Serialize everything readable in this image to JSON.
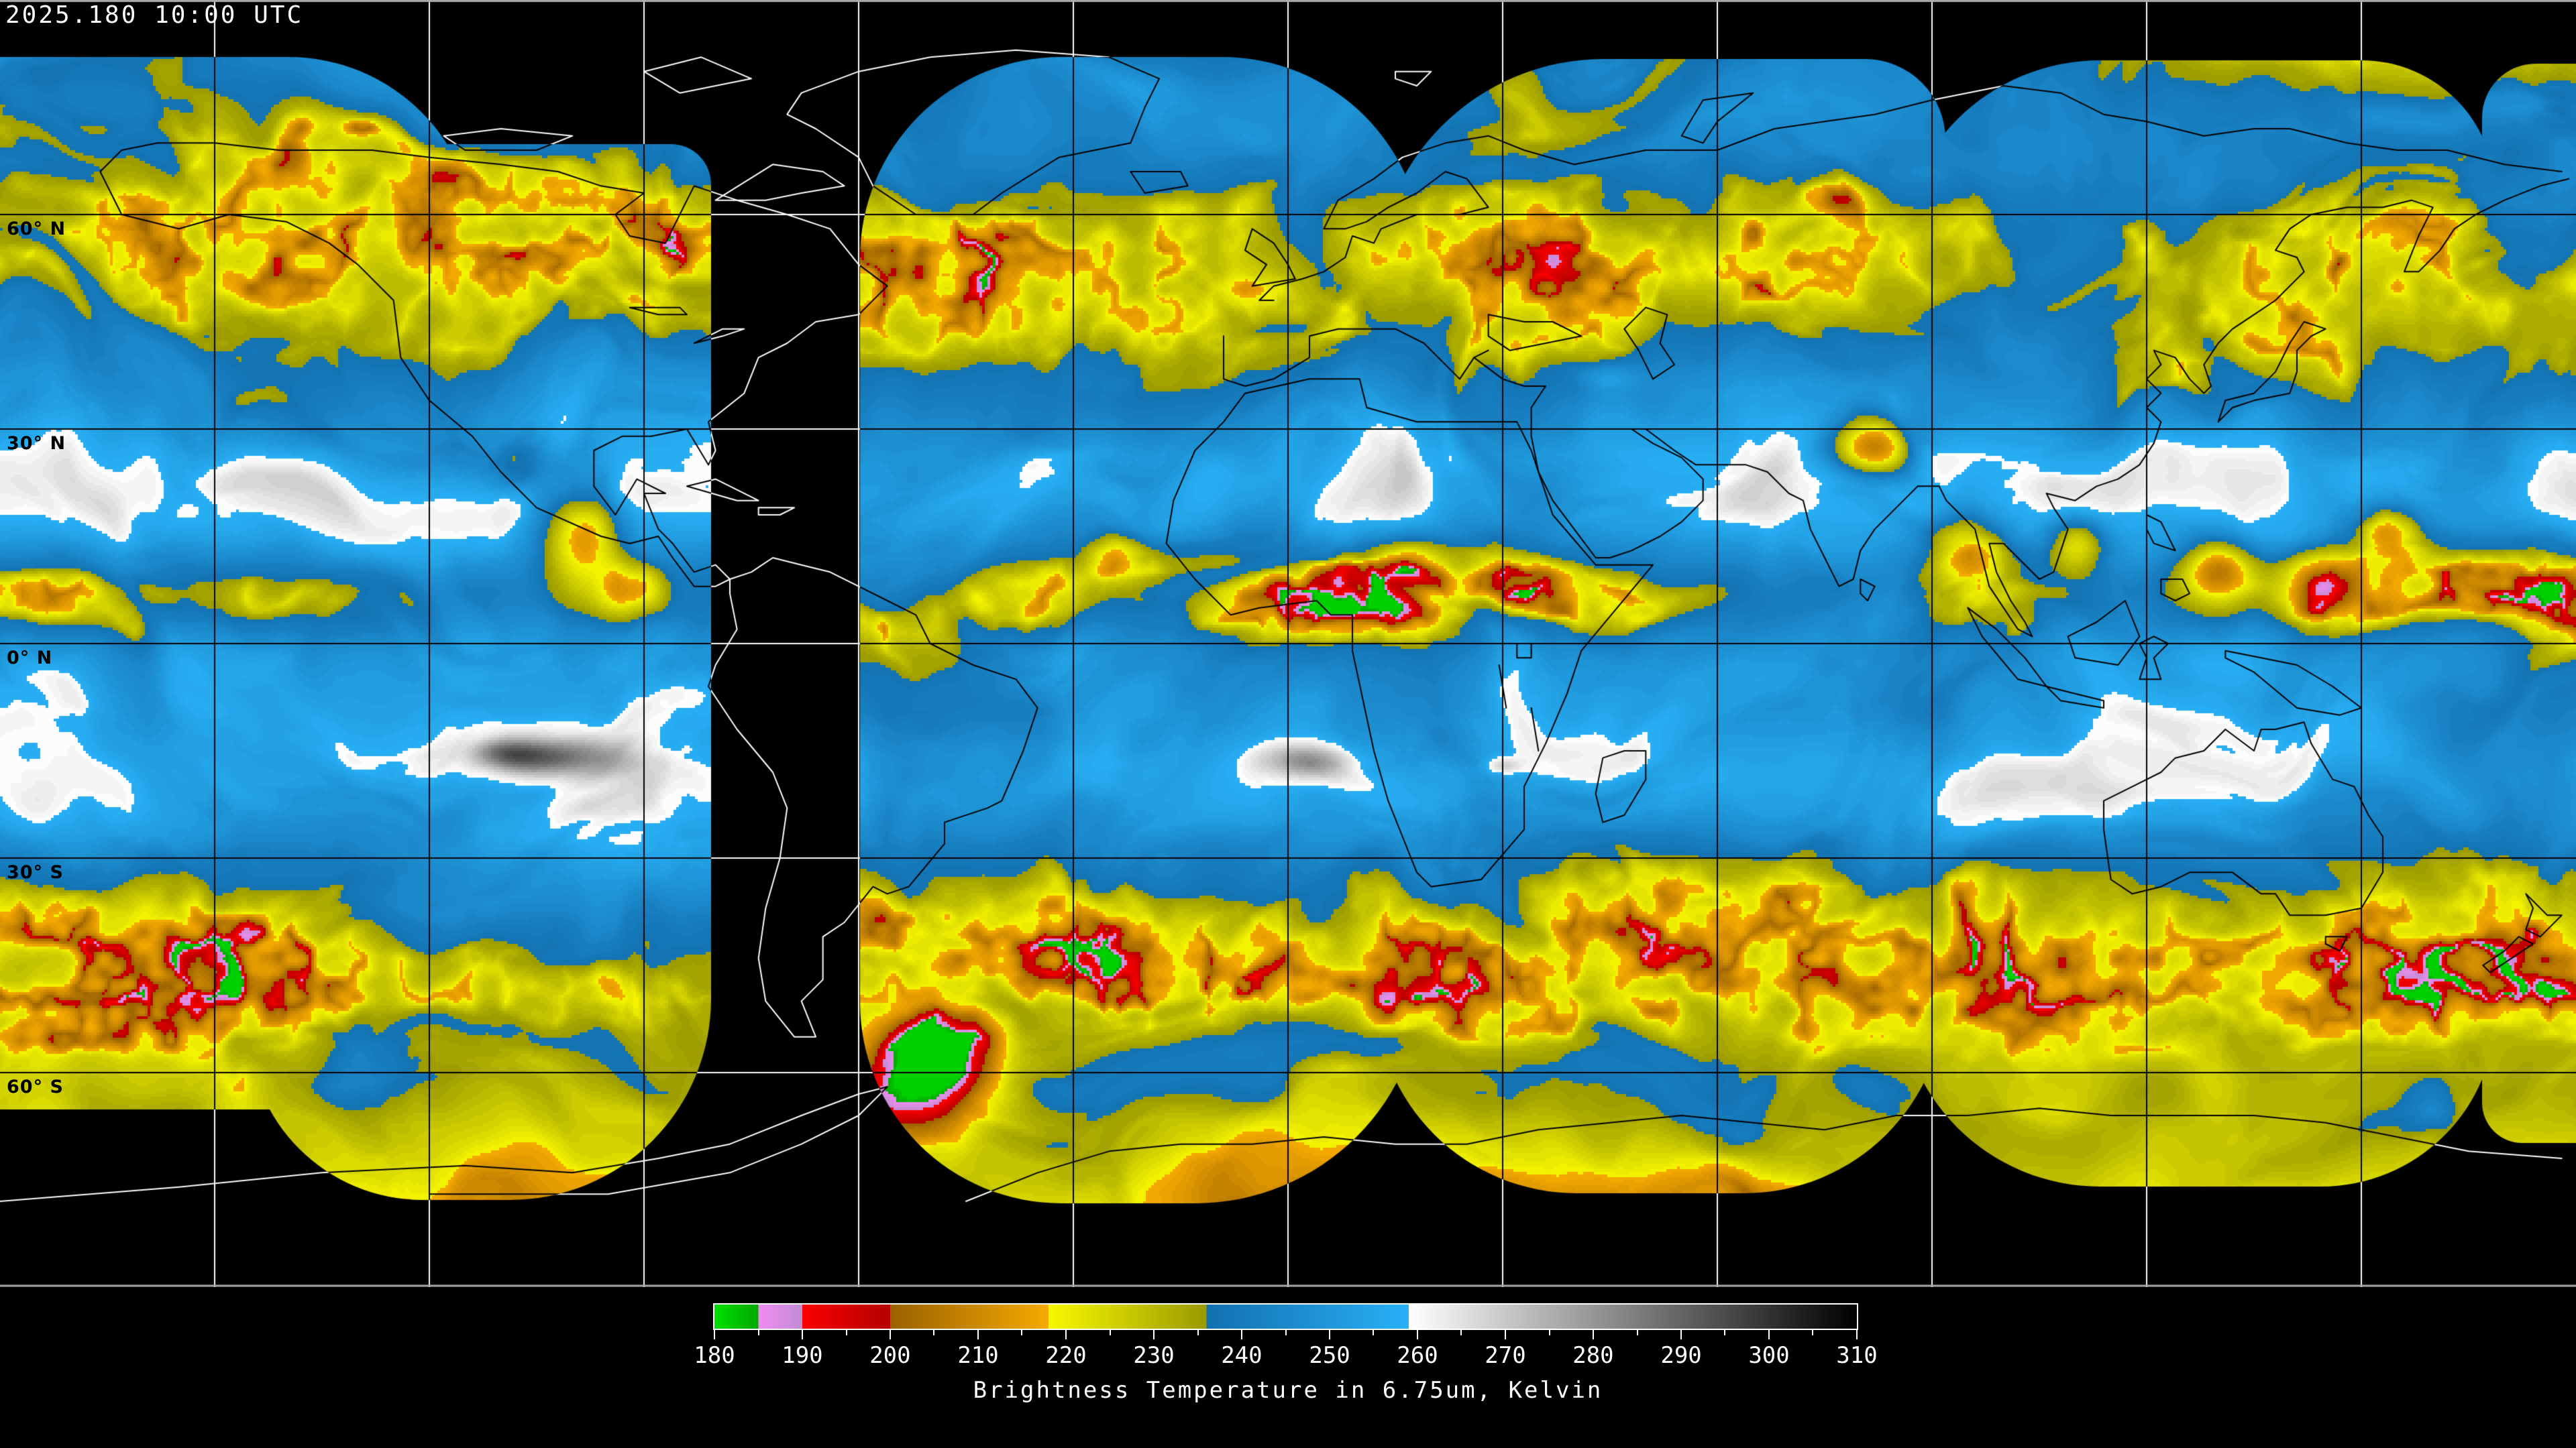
{
  "header": {
    "timestamp": "2025.180 10:00 UTC"
  },
  "map": {
    "projection": "equirectangular-global-composite",
    "grid_step_deg": 30,
    "latitude_labels": [
      {
        "text": "60° N",
        "lat": 60
      },
      {
        "text": "30° N",
        "lat": 30
      },
      {
        "text": "0° N",
        "lat": 0
      },
      {
        "text": "30° S",
        "lat": -30
      },
      {
        "text": "60° S",
        "lat": -60
      }
    ],
    "colors": {
      "void": "#000000",
      "graticule_on_data": "#000000",
      "graticule_on_void": "#ffffff",
      "coast_on_data": "#000000",
      "coast_on_void": "#ffffff",
      "frame": "#a8a8a8"
    }
  },
  "colorbar": {
    "title": "Brightness Temperature in 6.75um, Kelvin",
    "range_k": [
      180,
      310
    ],
    "major_ticks": [
      180,
      190,
      200,
      210,
      220,
      230,
      240,
      250,
      260,
      270,
      280,
      290,
      300,
      310
    ],
    "minor_tick_step_k": 5,
    "segments": [
      {
        "from_k": 180,
        "to_k": 185,
        "from": "#00e000",
        "to": "#00a800"
      },
      {
        "from_k": 185,
        "to_k": 190,
        "from": "#f08cf0",
        "to": "#c08cd4"
      },
      {
        "from_k": 190,
        "to_k": 200,
        "from": "#fa0000",
        "to": "#b40000"
      },
      {
        "from_k": 200,
        "to_k": 218,
        "from": "#9a6200",
        "to": "#f5aa00"
      },
      {
        "from_k": 218,
        "to_k": 236,
        "from": "#f8f800",
        "to": "#9a9a00"
      },
      {
        "from_k": 236,
        "to_k": 259,
        "from": "#1270b0",
        "to": "#28b0f5"
      },
      {
        "from_k": 259,
        "to_k": 310,
        "from": "#ffffff",
        "to": "#000000"
      }
    ]
  }
}
